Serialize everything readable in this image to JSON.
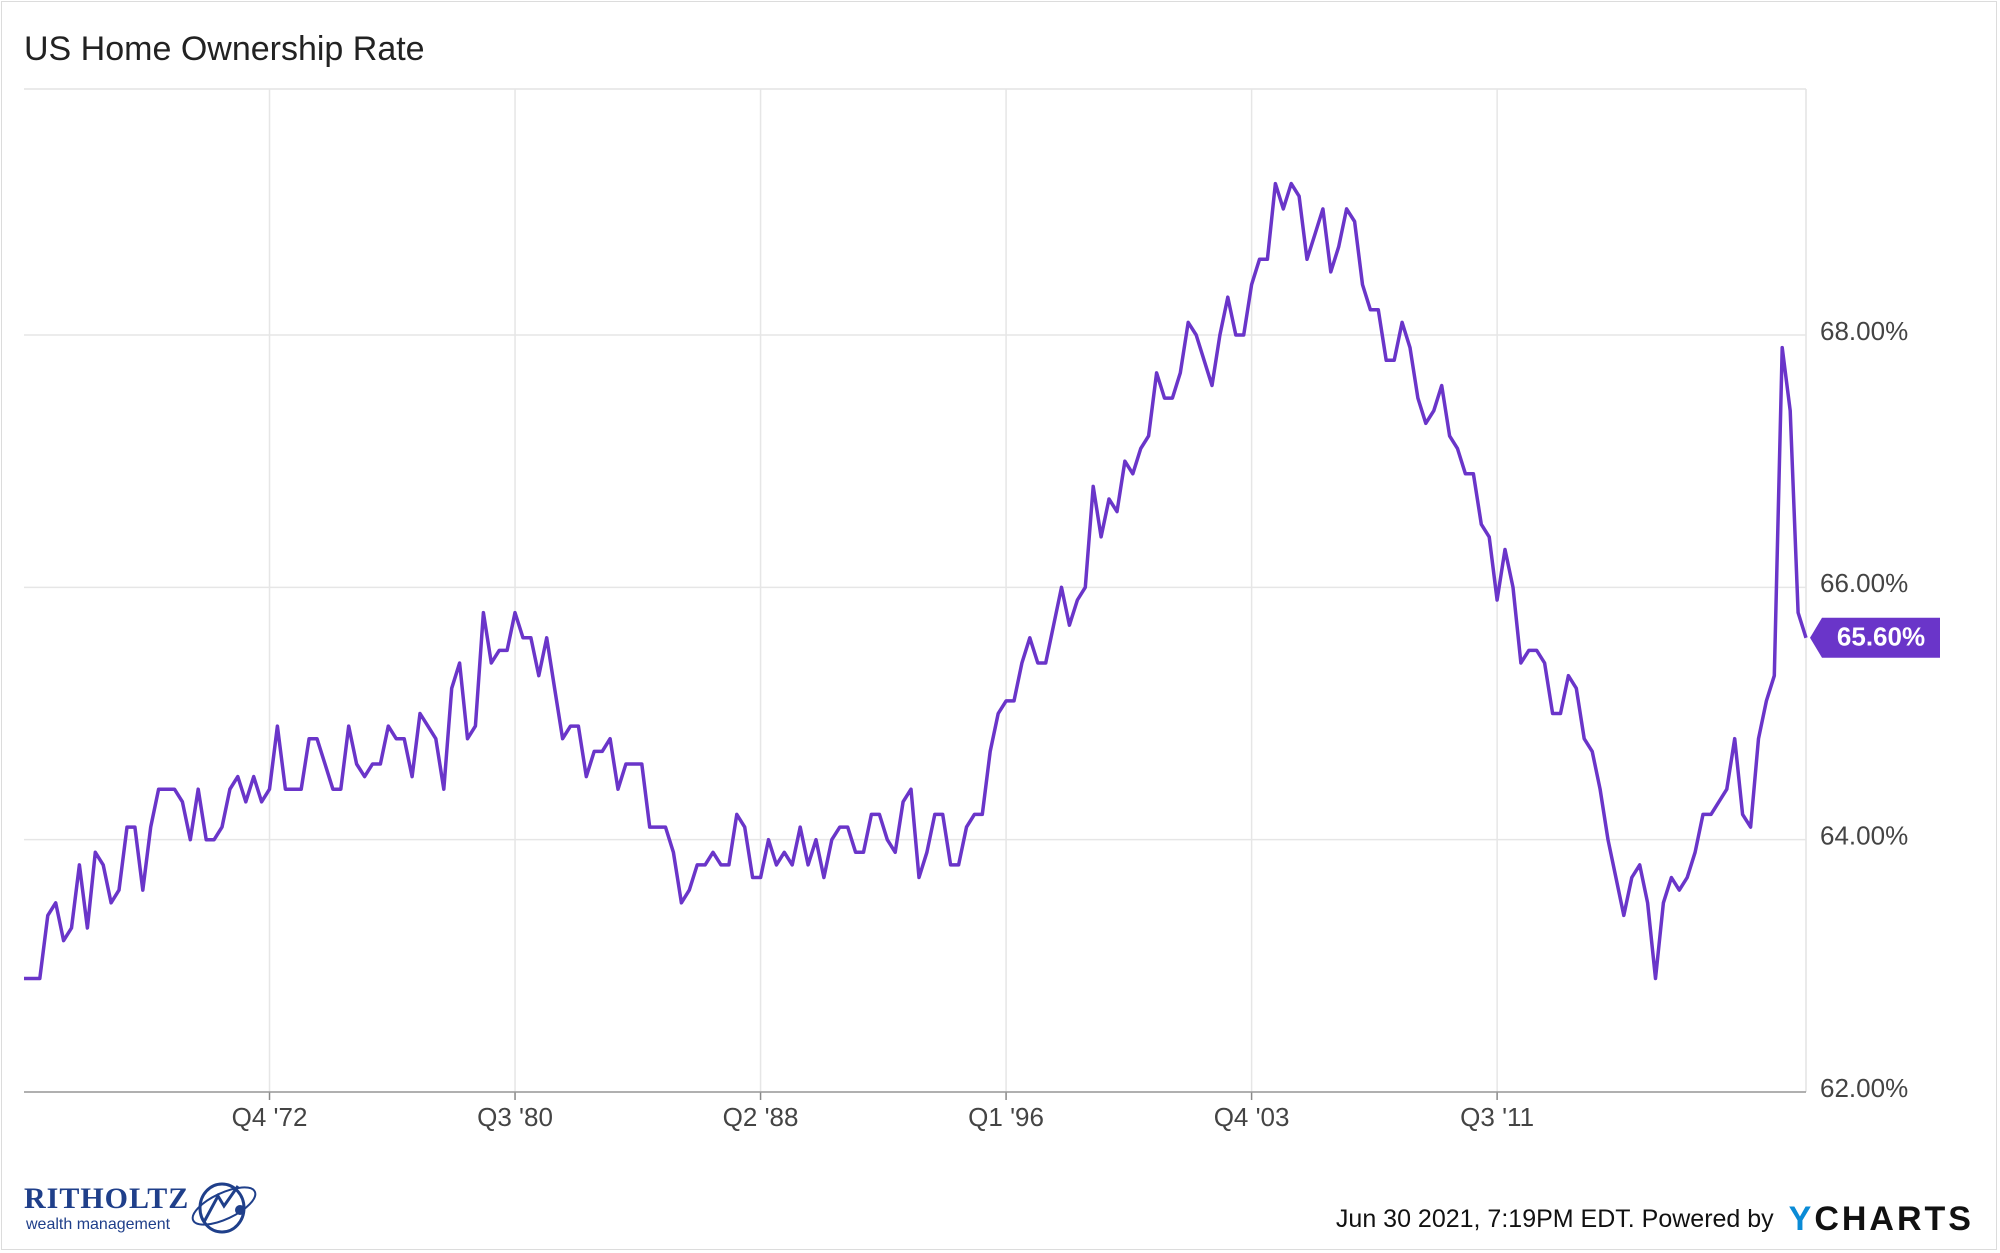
{
  "chart_data": {
    "type": "line",
    "title": "US Home Ownership Rate",
    "xlabel": "",
    "ylabel": "",
    "x_ticks": [
      "Q4 '72",
      "Q3 '80",
      "Q2 '88",
      "Q1 '96",
      "Q4 '03",
      "Q3 '11"
    ],
    "y_ticks": [
      "62.00%",
      "64.00%",
      "66.00%",
      "68.00%"
    ],
    "ylim": [
      62.0,
      69.95
    ],
    "xlim": [
      "Q1 1965",
      "Q2 2021"
    ],
    "grid": true,
    "line_color": "#6a35c9",
    "series": [
      {
        "start": "Q1 1965",
        "frequency": "quarterly",
        "values": [
          62.9,
          62.9,
          62.9,
          63.4,
          63.5,
          63.2,
          63.3,
          63.8,
          63.3,
          63.9,
          63.8,
          63.5,
          63.6,
          64.1,
          64.1,
          63.6,
          64.1,
          64.4,
          64.4,
          64.4,
          64.3,
          64.0,
          64.4,
          64.0,
          64.0,
          64.1,
          64.4,
          64.5,
          64.3,
          64.5,
          64.3,
          64.4,
          64.9,
          64.4,
          64.4,
          64.4,
          64.8,
          64.8,
          64.6,
          64.4,
          64.4,
          64.9,
          64.6,
          64.5,
          64.6,
          64.6,
          64.9,
          64.8,
          64.8,
          64.5,
          65.0,
          64.9,
          64.8,
          64.4,
          65.2,
          65.4,
          64.8,
          64.9,
          65.8,
          65.4,
          65.5,
          65.5,
          65.8,
          65.6,
          65.6,
          65.3,
          65.6,
          65.2,
          64.8,
          64.9,
          64.9,
          64.5,
          64.7,
          64.7,
          64.8,
          64.4,
          64.6,
          64.6,
          64.6,
          64.1,
          64.1,
          64.1,
          63.9,
          63.5,
          63.6,
          63.8,
          63.8,
          63.9,
          63.8,
          63.8,
          64.2,
          64.1,
          63.7,
          63.7,
          64.0,
          63.8,
          63.9,
          63.8,
          64.1,
          63.8,
          64.0,
          63.7,
          64.0,
          64.1,
          64.1,
          63.9,
          63.9,
          64.2,
          64.2,
          64.0,
          63.9,
          64.3,
          64.4,
          63.7,
          63.9,
          64.2,
          64.2,
          63.8,
          63.8,
          64.1,
          64.2,
          64.2,
          64.7,
          65.0,
          65.1,
          65.1,
          65.4,
          65.6,
          65.4,
          65.4,
          65.7,
          66.0,
          65.7,
          65.9,
          66.0,
          66.8,
          66.4,
          66.7,
          66.6,
          67.0,
          66.9,
          67.1,
          67.2,
          67.7,
          67.5,
          67.5,
          67.7,
          68.1,
          68.0,
          67.8,
          67.6,
          68.0,
          68.3,
          68.0,
          68.0,
          68.4,
          68.6,
          68.6,
          69.2,
          69.0,
          69.2,
          69.1,
          68.6,
          68.8,
          69.0,
          68.5,
          68.7,
          69.0,
          68.9,
          68.4,
          68.2,
          68.2,
          67.8,
          67.8,
          68.1,
          67.9,
          67.5,
          67.3,
          67.4,
          67.6,
          67.2,
          67.1,
          66.9,
          66.9,
          66.5,
          66.4,
          65.9,
          66.3,
          66.0,
          65.4,
          65.5,
          65.5,
          65.4,
          65.0,
          65.0,
          65.3,
          65.2,
          64.8,
          64.7,
          64.4,
          64.0,
          63.7,
          63.4,
          63.7,
          63.8,
          63.5,
          62.9,
          63.5,
          63.7,
          63.6,
          63.7,
          63.9,
          64.2,
          64.2,
          64.3,
          64.4,
          64.8,
          64.2,
          64.1,
          64.8,
          65.1,
          65.3,
          67.9,
          67.4,
          65.8,
          65.6
        ]
      }
    ],
    "last_value_label": "65.60%"
  },
  "footer": {
    "timestamp": "Jun 30 2021, 7:19PM EDT. Powered by",
    "brand_y": "Y",
    "brand_rest": "CHARTS"
  },
  "logo": {
    "name": "RITHOLTZ",
    "subtitle": "wealth management"
  }
}
